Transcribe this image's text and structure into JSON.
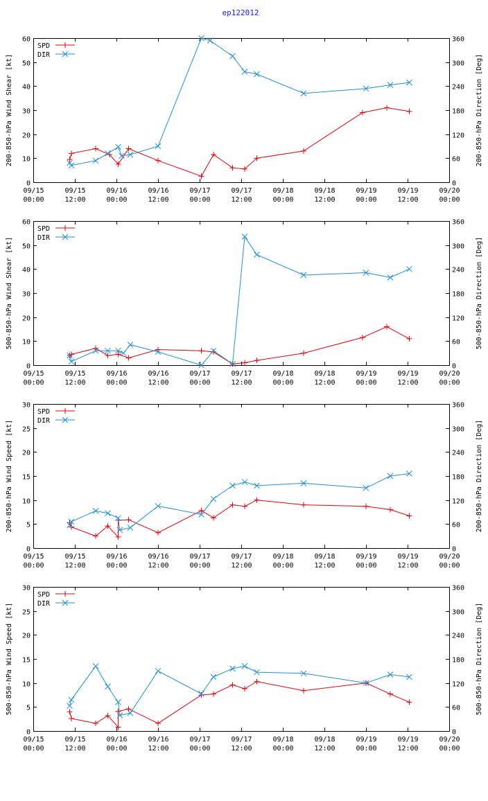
{
  "title": "ep122012",
  "colors": {
    "spd": "#e8000b",
    "dir": "#1f8fd6",
    "title": "#1a1aff"
  },
  "x_ticks": [
    {
      "t": 0,
      "date": "09/15",
      "time": "00:00"
    },
    {
      "t": 12,
      "date": "09/15",
      "time": "12:00"
    },
    {
      "t": 24,
      "date": "09/16",
      "time": "00:00"
    },
    {
      "t": 36,
      "date": "09/16",
      "time": "12:00"
    },
    {
      "t": 48,
      "date": "09/17",
      "time": "00:00"
    },
    {
      "t": 60,
      "date": "09/17",
      "time": "12:00"
    },
    {
      "t": 72,
      "date": "09/18",
      "time": "00:00"
    },
    {
      "t": 84,
      "date": "09/18",
      "time": "12:00"
    },
    {
      "t": 96,
      "date": "09/19",
      "time": "00:00"
    },
    {
      "t": 108,
      "date": "09/19",
      "time": "12:00"
    },
    {
      "t": 120,
      "date": "09/20",
      "time": "00:00"
    }
  ],
  "chart_data": [
    {
      "type": "line",
      "title": "ep122012",
      "xlabel": "",
      "ylabel": "200-850-hPa Wind Shear [kt]",
      "y2label": "200-850-hPa Direction [Deg]",
      "xlim": [
        0,
        120
      ],
      "ylim": [
        0,
        60
      ],
      "y2lim": [
        0,
        360
      ],
      "y_ticks": [
        0,
        10,
        20,
        30,
        40,
        50,
        60
      ],
      "y2_ticks": [
        0,
        60,
        120,
        180,
        240,
        300,
        360
      ],
      "legend": "top-left",
      "series": [
        {
          "name": "SPD",
          "axis": "left",
          "x": [
            10.5,
            11,
            18,
            22,
            24.5,
            27.5,
            36,
            48.5,
            52,
            57.5,
            61,
            64.5,
            78,
            95,
            102,
            108.5
          ],
          "values": [
            9.5,
            12,
            14,
            11.5,
            7.5,
            14,
            9,
            2.5,
            11.5,
            6,
            5.5,
            10,
            13,
            29,
            31,
            29.5
          ]
        },
        {
          "name": "DIR",
          "axis": "right",
          "x": [
            10.5,
            11,
            18,
            21.5,
            24.5,
            25.5,
            28,
            36,
            48.5,
            51,
            57.5,
            61,
            64.5,
            78,
            96,
            103,
            108.5
          ],
          "values": [
            48,
            42,
            54,
            72,
            88,
            66,
            69,
            90,
            360,
            354,
            315,
            276,
            270,
            222,
            234,
            243,
            249
          ]
        }
      ]
    },
    {
      "type": "line",
      "title": "ep122012",
      "xlabel": "",
      "ylabel": "500-850-hPa Wind Shear [kt]",
      "y2label": "500-850-hPa Direction [Deg]",
      "xlim": [
        0,
        120
      ],
      "ylim": [
        0,
        60
      ],
      "y2lim": [
        0,
        360
      ],
      "y_ticks": [
        0,
        10,
        20,
        30,
        40,
        50,
        60
      ],
      "y2_ticks": [
        0,
        60,
        120,
        180,
        240,
        300,
        360
      ],
      "legend": "top-left",
      "series": [
        {
          "name": "SPD",
          "axis": "left",
          "x": [
            10.5,
            11,
            18,
            21.5,
            24.5,
            27.5,
            36,
            48.5,
            52,
            57.5,
            61,
            64.5,
            78,
            95,
            102,
            108.5
          ],
          "values": [
            4,
            4.5,
            7,
            4,
            4.5,
            3,
            6.5,
            6,
            5.5,
            0.5,
            1,
            2,
            5,
            11.5,
            16,
            11
          ]
        },
        {
          "name": "DIR",
          "axis": "right",
          "x": [
            10.5,
            11,
            18,
            21.5,
            24.5,
            26,
            28,
            36,
            48.5,
            52,
            57.5,
            61,
            64.5,
            78,
            96,
            103,
            108.5
          ],
          "values": [
            24,
            9,
            36,
            36,
            36,
            30,
            51,
            33,
            0,
            36,
            3,
            321,
            276,
            225,
            231,
            219,
            240
          ]
        }
      ]
    },
    {
      "type": "line",
      "title": "ep122012",
      "xlabel": "",
      "ylabel": "200-850-hPa Wind Speed [kt]",
      "y2label": "200-850-hPa Direction [Deg]",
      "xlim": [
        0,
        120
      ],
      "ylim": [
        0,
        30
      ],
      "y2lim": [
        0,
        360
      ],
      "y_ticks": [
        0,
        5,
        10,
        15,
        20,
        25,
        30
      ],
      "y2_ticks": [
        0,
        60,
        120,
        180,
        240,
        300,
        360
      ],
      "legend": "top-left",
      "series": [
        {
          "name": "SPD",
          "axis": "left",
          "x": [
            10.5,
            11,
            18,
            21.5,
            24.5,
            24.5,
            27.5,
            36,
            48.5,
            52,
            57.5,
            61,
            64.5,
            78,
            96,
            103,
            108.5
          ],
          "values": [
            5.3,
            4.4,
            2.5,
            4.6,
            2.3,
            5.8,
            5.9,
            3.2,
            7.8,
            6.3,
            9,
            8.7,
            10,
            9,
            8.7,
            8,
            6.7
          ]
        },
        {
          "name": "DIR",
          "axis": "right",
          "x": [
            10.5,
            11,
            18,
            21.5,
            24.5,
            25,
            28,
            36,
            48.5,
            52,
            57.5,
            61,
            64.5,
            78,
            96,
            103,
            108.5
          ],
          "values": [
            57,
            66,
            93,
            87,
            75,
            45,
            51,
            105,
            84,
            123,
            156,
            165,
            156,
            162,
            150,
            180,
            186
          ]
        }
      ]
    },
    {
      "type": "line",
      "title": "ep122012",
      "xlabel": "",
      "ylabel": "500-850-hPa Wind Speed [kt]",
      "y2label": "500-850-hPa Direction [Deg]",
      "xlim": [
        0,
        120
      ],
      "ylim": [
        0,
        30
      ],
      "y2lim": [
        0,
        360
      ],
      "y_ticks": [
        0,
        5,
        10,
        15,
        20,
        25,
        30
      ],
      "y2_ticks": [
        0,
        60,
        120,
        180,
        240,
        300,
        360
      ],
      "legend": "top-left",
      "series": [
        {
          "name": "SPD",
          "axis": "left",
          "x": [
            10.5,
            11,
            18,
            21.5,
            24.5,
            24.5,
            27.5,
            36,
            48.5,
            52,
            57.5,
            61,
            64.5,
            78,
            96,
            103,
            108.5
          ],
          "values": [
            4,
            2.6,
            1.6,
            3.2,
            0.8,
            4.1,
            4.6,
            1.6,
            7.5,
            7.7,
            9.6,
            8.8,
            10.3,
            8.4,
            10,
            7.7,
            6
          ]
        },
        {
          "name": "DIR",
          "axis": "right",
          "x": [
            10.5,
            11,
            18,
            21.5,
            24.5,
            25,
            28,
            36,
            48.5,
            52,
            57.5,
            61,
            64.5,
            78,
            96,
            103,
            108.5
          ],
          "values": [
            63,
            78,
            162,
            111,
            72,
            39,
            45,
            150,
            93,
            135,
            156,
            162,
            147,
            144,
            120,
            141,
            135
          ]
        }
      ]
    }
  ]
}
